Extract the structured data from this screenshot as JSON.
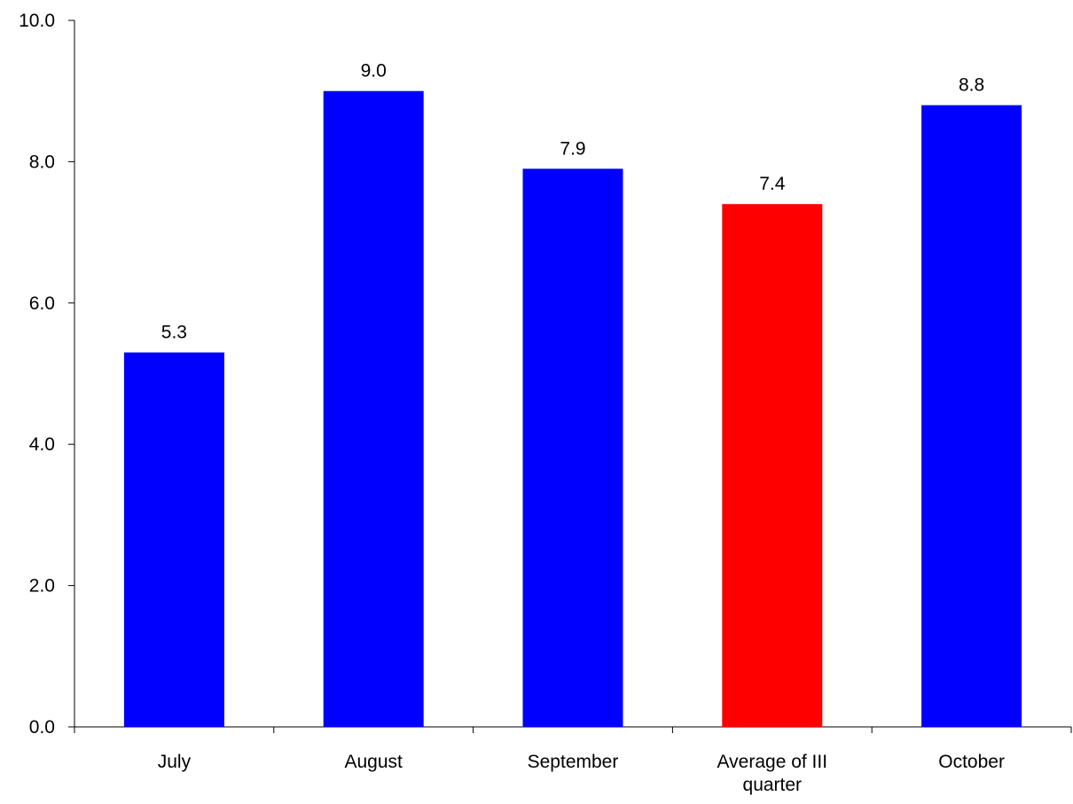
{
  "chart_data": {
    "type": "bar",
    "categories": [
      [
        "July"
      ],
      [
        "August"
      ],
      [
        "September"
      ],
      [
        "Average of III",
        "quarter"
      ],
      [
        "October"
      ]
    ],
    "values": [
      5.3,
      9.0,
      7.9,
      7.4,
      8.8
    ],
    "value_labels": [
      "5.3",
      "9.0",
      "7.9",
      "7.4",
      "8.8"
    ],
    "bar_colors": [
      "#0000FF",
      "#0000FF",
      "#0000FF",
      "#FF0000",
      "#0000FF"
    ],
    "ylim": [
      0,
      10
    ],
    "yticks": [
      0,
      2,
      4,
      6,
      8,
      10
    ],
    "ytick_labels": [
      "0.0",
      "2.0",
      "4.0",
      "6.0",
      "8.0",
      "10.0"
    ],
    "grid": false,
    "legend": "none",
    "title": "",
    "xlabel": "",
    "ylabel": ""
  }
}
